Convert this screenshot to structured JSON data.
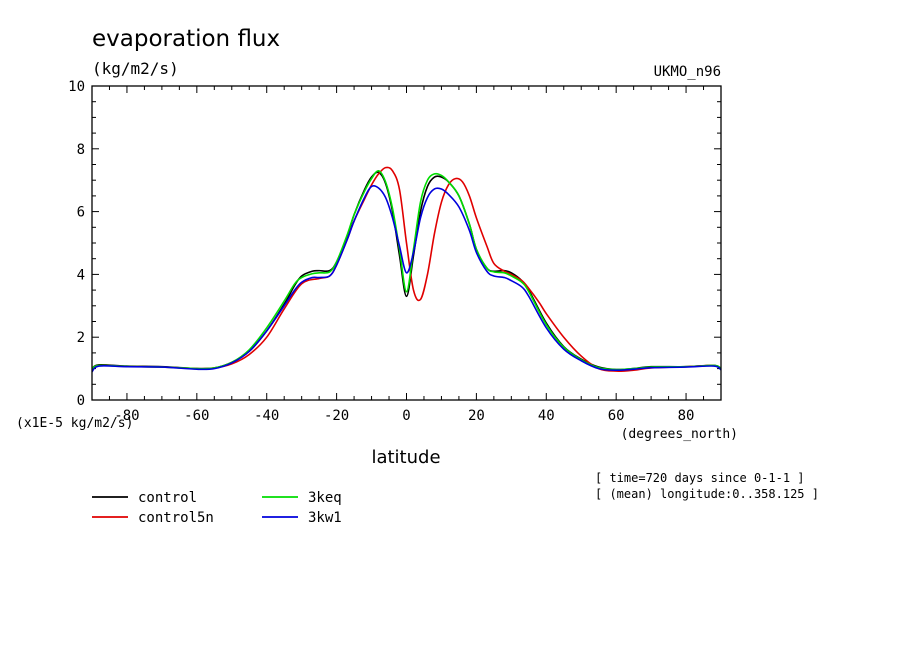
{
  "chart_data": {
    "type": "line",
    "title": "evaporation flux",
    "units": "(kg/m2/s)",
    "dataset": "UKMO_n96",
    "xlabel": "latitude",
    "xunits": "(degrees_north)",
    "yscale_label": "(x1E-5 kg/m2/s)",
    "xlim": [
      -90,
      90
    ],
    "ylim": [
      0,
      10
    ],
    "xticks": [
      -80,
      -60,
      -40,
      -20,
      0,
      20,
      40,
      60,
      80
    ],
    "yticks": [
      0,
      2,
      4,
      6,
      8,
      10
    ],
    "grid": false,
    "legend_placement": "bottom-left",
    "info_lines": [
      "[ time=720 days since 0-1-1 ]",
      "[ (mean) longitude:0..358.125 ]"
    ],
    "series": [
      {
        "name": "control",
        "color": "#000000",
        "x": [
          -90,
          -88,
          -80,
          -70,
          -60,
          -55,
          -50,
          -45,
          -40,
          -35,
          -32,
          -30,
          -27,
          -25,
          -22,
          -20,
          -17,
          -15,
          -12,
          -10,
          -8,
          -6,
          -4,
          -2,
          0,
          2,
          4,
          6,
          8,
          10,
          12,
          15,
          18,
          20,
          23,
          25,
          28,
          30,
          33,
          35,
          40,
          45,
          50,
          55,
          60,
          65,
          70,
          80,
          88,
          90
        ],
        "y": [
          1.0,
          1.12,
          1.08,
          1.06,
          1.0,
          1.02,
          1.2,
          1.55,
          2.2,
          3.05,
          3.65,
          3.95,
          4.1,
          4.12,
          4.12,
          4.4,
          5.2,
          5.9,
          6.7,
          7.1,
          7.25,
          6.9,
          6.0,
          4.6,
          3.3,
          4.6,
          6.0,
          6.8,
          7.1,
          7.1,
          6.95,
          6.5,
          5.6,
          4.8,
          4.2,
          4.1,
          4.12,
          4.05,
          3.8,
          3.5,
          2.45,
          1.7,
          1.3,
          1.05,
          0.97,
          1.0,
          1.06,
          1.06,
          1.1,
          1.0
        ]
      },
      {
        "name": "control5n",
        "color": "#e00000",
        "x": [
          -90,
          -88,
          -80,
          -70,
          -60,
          -55,
          -50,
          -45,
          -40,
          -35,
          -30,
          -25,
          -22,
          -20,
          -17,
          -15,
          -12,
          -10,
          -8,
          -6,
          -4,
          -2,
          0,
          2,
          4,
          6,
          8,
          10,
          12,
          14,
          16,
          18,
          20,
          23,
          25,
          28,
          30,
          33,
          35,
          38,
          40,
          45,
          50,
          55,
          60,
          65,
          70,
          80,
          88,
          90
        ],
        "y": [
          1.0,
          1.1,
          1.07,
          1.05,
          1.0,
          1.02,
          1.15,
          1.45,
          2.0,
          2.9,
          3.7,
          3.87,
          3.95,
          4.3,
          5.1,
          5.7,
          6.4,
          6.85,
          7.2,
          7.4,
          7.3,
          6.7,
          5.0,
          3.5,
          3.2,
          4.0,
          5.3,
          6.3,
          6.85,
          7.05,
          6.95,
          6.5,
          5.8,
          4.9,
          4.35,
          4.1,
          4.0,
          3.8,
          3.55,
          3.1,
          2.75,
          2.0,
          1.4,
          1.0,
          0.92,
          0.95,
          1.02,
          1.06,
          1.1,
          0.98
        ]
      },
      {
        "name": "3keq",
        "color": "#00dd00",
        "x": [
          -90,
          -88,
          -80,
          -70,
          -60,
          -55,
          -50,
          -45,
          -40,
          -35,
          -32,
          -30,
          -27,
          -25,
          -22,
          -20,
          -17,
          -15,
          -12,
          -10,
          -8,
          -6,
          -4,
          -2,
          0,
          2,
          4,
          6,
          8,
          10,
          12,
          15,
          18,
          20,
          23,
          25,
          28,
          30,
          33,
          35,
          40,
          45,
          50,
          55,
          60,
          65,
          70,
          80,
          88,
          90
        ],
        "y": [
          1.0,
          1.1,
          1.07,
          1.05,
          1.0,
          1.02,
          1.2,
          1.6,
          2.3,
          3.15,
          3.7,
          3.9,
          4.02,
          4.05,
          4.08,
          4.4,
          5.25,
          5.9,
          6.65,
          7.05,
          7.3,
          6.95,
          6.1,
          4.8,
          3.45,
          4.8,
          6.3,
          7.0,
          7.2,
          7.15,
          6.95,
          6.5,
          5.6,
          4.8,
          4.2,
          4.08,
          4.05,
          3.95,
          3.75,
          3.45,
          2.4,
          1.68,
          1.28,
          1.03,
          0.97,
          1.0,
          1.05,
          1.06,
          1.1,
          1.0
        ]
      },
      {
        "name": "3kw1",
        "color": "#0000dd",
        "x": [
          -90,
          -88,
          -80,
          -70,
          -60,
          -55,
          -50,
          -45,
          -40,
          -35,
          -32,
          -30,
          -27,
          -25,
          -22,
          -20,
          -17,
          -15,
          -12,
          -10,
          -8,
          -6,
          -4,
          -2,
          0,
          2,
          4,
          6,
          8,
          10,
          12,
          15,
          18,
          20,
          23,
          25,
          28,
          30,
          33,
          35,
          40,
          45,
          50,
          55,
          60,
          65,
          70,
          80,
          88,
          90
        ],
        "y": [
          0.9,
          1.08,
          1.06,
          1.05,
          0.98,
          1.0,
          1.18,
          1.55,
          2.2,
          3.0,
          3.5,
          3.75,
          3.9,
          3.9,
          3.95,
          4.3,
          5.1,
          5.7,
          6.45,
          6.8,
          6.75,
          6.45,
          5.8,
          4.9,
          4.05,
          4.7,
          5.8,
          6.45,
          6.72,
          6.72,
          6.55,
          6.15,
          5.4,
          4.7,
          4.1,
          3.95,
          3.9,
          3.8,
          3.6,
          3.3,
          2.3,
          1.62,
          1.25,
          1.0,
          0.95,
          0.98,
          1.03,
          1.05,
          1.08,
          0.96
        ]
      }
    ]
  }
}
